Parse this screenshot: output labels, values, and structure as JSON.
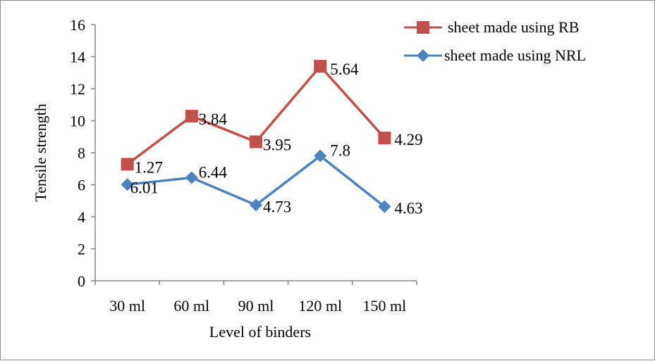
{
  "chart_data": {
    "type": "line",
    "categories": [
      "30 ml",
      "60 ml",
      "90 ml",
      "120 ml",
      "150 ml"
    ],
    "xlabel": "Level of binders",
    "ylabel": "Tensile strength",
    "ylim": [
      0,
      16
    ],
    "y_ticks": [
      "0",
      "2",
      "4",
      "6",
      "8",
      "10",
      "12",
      "14",
      "16"
    ],
    "grid": false,
    "legend_position": "top-right",
    "series": [
      {
        "name": "sheet made using RB",
        "color": "#c0504d",
        "marker": "square",
        "values": [
          7.28,
          10.28,
          8.68,
          13.4,
          8.92
        ],
        "labels": [
          "1.27",
          "3.84",
          "3.95",
          "5.64",
          "4.29"
        ]
      },
      {
        "name": "sheet made using NRL",
        "color": "#4f81bd",
        "marker": "diamond",
        "values": [
          6.01,
          6.44,
          4.73,
          7.8,
          4.63
        ],
        "labels": [
          "6.01",
          "6.44",
          "4.73",
          "7.8",
          "4.63"
        ]
      }
    ]
  }
}
